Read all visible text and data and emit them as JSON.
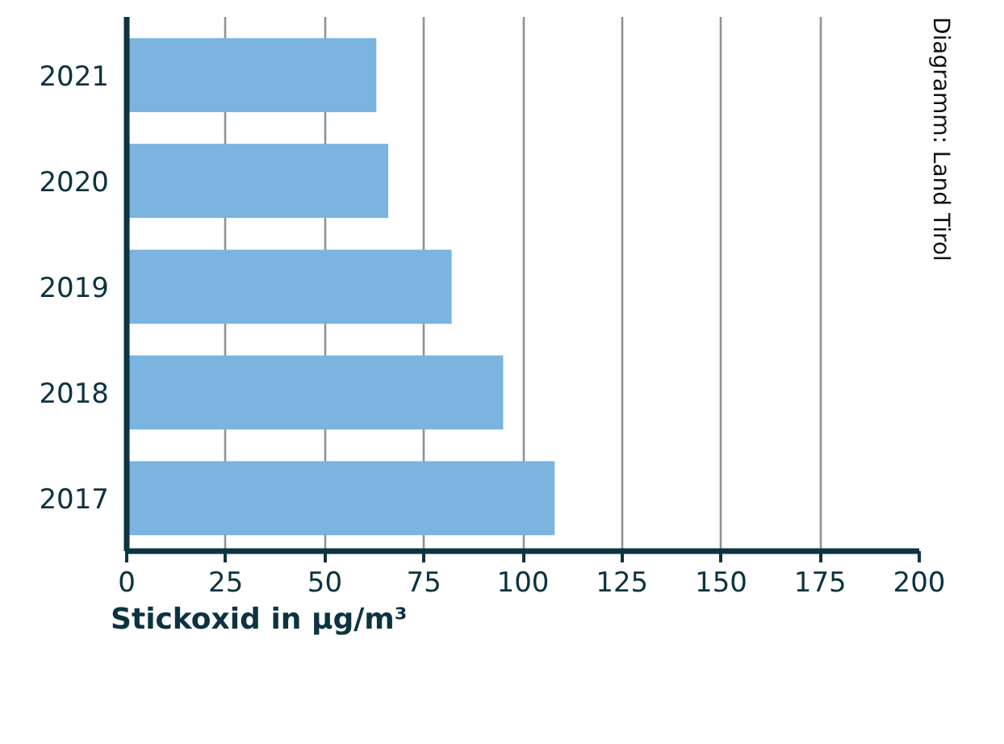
{
  "chart_data": {
    "type": "bar",
    "orientation": "horizontal",
    "xlabel": "Stickoxid in µg/m³",
    "categories": [
      "2021",
      "2020",
      "2019",
      "2018",
      "2017"
    ],
    "values": [
      63,
      66,
      82,
      95,
      108
    ],
    "color": "#7ab4df",
    "xlim": [
      0,
      200
    ],
    "xticks": [
      0,
      25,
      50,
      75,
      100,
      125,
      150,
      175,
      200
    ],
    "grid": "x",
    "annotations": [
      "Diagramm: Land Tirol"
    ]
  }
}
